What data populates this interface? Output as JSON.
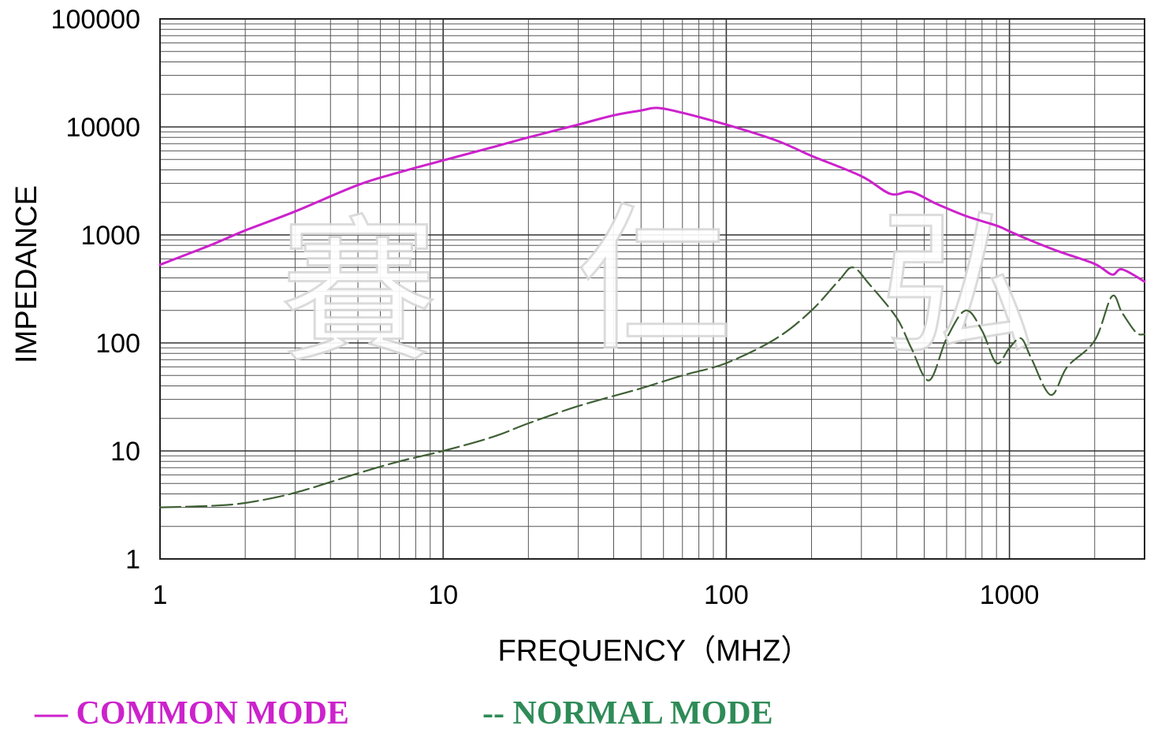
{
  "chart_data": {
    "type": "line",
    "xlabel": "FREQUENCY（MHZ）",
    "ylabel": "IMPEDANCE",
    "xscale": "log",
    "yscale": "log",
    "xlim": [
      1,
      3000
    ],
    "ylim": [
      1,
      100000
    ],
    "grid": true,
    "legend_position": "bottom",
    "x_tick_labels": [
      "1",
      "10",
      "100",
      "1000"
    ],
    "y_tick_labels": [
      "1",
      "10",
      "100",
      "1000",
      "10000",
      "100000"
    ],
    "watermark": [
      "賽",
      "仁",
      "弘"
    ],
    "series": [
      {
        "name": "COMMON MODE",
        "legend_label": "— COMMON MODE",
        "color": "#cc22cc",
        "style": "solid",
        "x": [
          1,
          1.5,
          2,
          3,
          5,
          7,
          10,
          15,
          20,
          30,
          40,
          50,
          57,
          70,
          100,
          150,
          200,
          300,
          380,
          450,
          550,
          700,
          900,
          1000,
          1200,
          1500,
          2000,
          2300,
          2500,
          3000
        ],
        "y": [
          530,
          800,
          1100,
          1650,
          2900,
          3800,
          4900,
          6500,
          8000,
          10500,
          12800,
          14200,
          15000,
          13500,
          10500,
          7500,
          5400,
          3500,
          2400,
          2500,
          1950,
          1500,
          1220,
          1080,
          880,
          700,
          540,
          430,
          480,
          370
        ]
      },
      {
        "name": "NORMAL MODE",
        "legend_label": "-- NORMAL MODE",
        "color": "#3f6035",
        "style": "dashed",
        "x": [
          1,
          1.5,
          2,
          3,
          5,
          7,
          10,
          15,
          20,
          30,
          50,
          70,
          100,
          150,
          200,
          250,
          280,
          320,
          400,
          450,
          520,
          600,
          700,
          800,
          900,
          1000,
          1100,
          1200,
          1400,
          1600,
          2000,
          2300,
          2500,
          2800,
          3000
        ],
        "y": [
          3,
          3.1,
          3.3,
          4.1,
          6.2,
          8,
          10,
          13.5,
          18,
          26,
          38,
          50,
          65,
          110,
          200,
          380,
          500,
          350,
          170,
          90,
          45,
          110,
          200,
          130,
          65,
          90,
          110,
          70,
          33,
          60,
          105,
          270,
          190,
          125,
          120
        ]
      }
    ]
  }
}
